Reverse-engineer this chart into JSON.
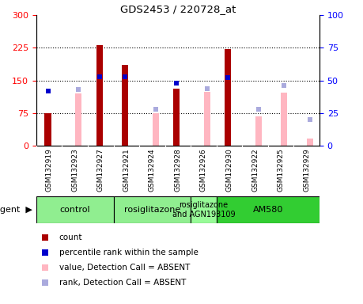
{
  "title": "GDS2453 / 220728_at",
  "samples": [
    "GSM132919",
    "GSM132923",
    "GSM132927",
    "GSM132921",
    "GSM132924",
    "GSM132928",
    "GSM132926",
    "GSM132930",
    "GSM132922",
    "GSM132925",
    "GSM132929"
  ],
  "red_bars": [
    75,
    0,
    232,
    185,
    0,
    132,
    0,
    222,
    0,
    0,
    0
  ],
  "pink_bars": [
    0,
    120,
    0,
    0,
    75,
    0,
    125,
    0,
    68,
    122,
    17
  ],
  "blue_squares_val": [
    42,
    0,
    0,
    0,
    0,
    48,
    0,
    0,
    0,
    0,
    0
  ],
  "light_blue_squares_val": [
    0,
    43,
    0,
    0,
    28,
    0,
    44,
    0,
    28,
    46,
    20
  ],
  "blue_on_red_val": [
    0,
    0,
    53,
    53,
    0,
    0,
    0,
    52,
    0,
    0,
    0
  ],
  "ylim_left": [
    0,
    300
  ],
  "ylim_right": [
    0,
    100
  ],
  "yticks_left": [
    0,
    75,
    150,
    225,
    300
  ],
  "yticks_right": [
    0,
    25,
    50,
    75,
    100
  ],
  "groups_info": [
    {
      "label": "control",
      "start": 0,
      "end": 2,
      "color": "#90EE90"
    },
    {
      "label": "rosiglitazone",
      "start": 3,
      "end": 5,
      "color": "#90EE90"
    },
    {
      "label": "rosiglitazone\nand AGN193109",
      "start": 6,
      "end": 6,
      "color": "#98FB98"
    },
    {
      "label": "AM580",
      "start": 7,
      "end": 10,
      "color": "#32CD32"
    }
  ],
  "legend_items": [
    {
      "color": "#AA0000",
      "label": "count"
    },
    {
      "color": "#0000CC",
      "label": "percentile rank within the sample"
    },
    {
      "color": "#FFB6C1",
      "label": "value, Detection Call = ABSENT"
    },
    {
      "color": "#AAAADD",
      "label": "rank, Detection Call = ABSENT"
    }
  ],
  "red_color": "#AA0000",
  "pink_color": "#FFB6C1",
  "blue_color": "#0000CC",
  "light_blue_color": "#AAAADD",
  "plot_bg": "#FFFFFF",
  "xticklabel_bg": "#CCCCCC"
}
